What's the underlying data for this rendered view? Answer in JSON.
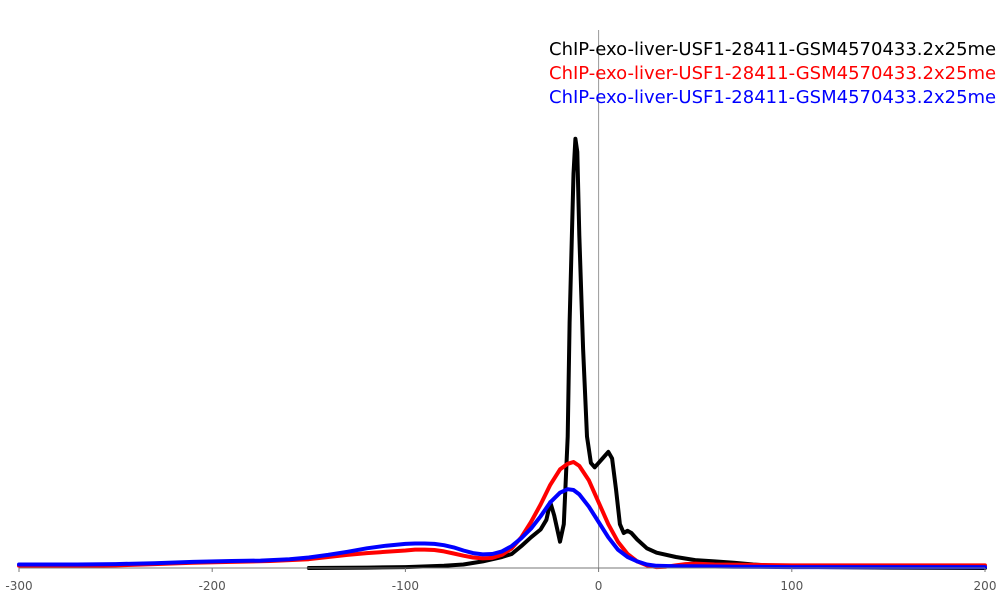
{
  "chart_data": {
    "type": "line",
    "title": "",
    "xlabel": "",
    "ylabel": "",
    "xlim": [
      -300,
      200
    ],
    "ylim": [
      0,
      1
    ],
    "grid": false,
    "legend_position": "top-right",
    "x_ticks": [
      -300,
      -200,
      -100,
      0,
      100,
      200
    ],
    "x_tick_labels": [
      "-300",
      "-200",
      "-100",
      "0",
      "100",
      "200"
    ],
    "series": [
      {
        "name": "ChIP-exo-liver-USF1-28411-GSM4570433.2x25me",
        "color": "#000000",
        "points": [
          [
            -150,
            0.0
          ],
          [
            -120,
            0.001
          ],
          [
            -100,
            0.002
          ],
          [
            -80,
            0.005
          ],
          [
            -70,
            0.008
          ],
          [
            -60,
            0.015
          ],
          [
            -50,
            0.025
          ],
          [
            -45,
            0.032
          ],
          [
            -40,
            0.05
          ],
          [
            -35,
            0.07
          ],
          [
            -30,
            0.088
          ],
          [
            -27,
            0.11
          ],
          [
            -25,
            0.15
          ],
          [
            -23,
            0.12
          ],
          [
            -20,
            0.06
          ],
          [
            -18,
            0.1
          ],
          [
            -16,
            0.3
          ],
          [
            -15,
            0.56
          ],
          [
            -13,
            0.9
          ],
          [
            -12,
            0.98
          ],
          [
            -11,
            0.95
          ],
          [
            -10,
            0.76
          ],
          [
            -8,
            0.5
          ],
          [
            -6,
            0.3
          ],
          [
            -4,
            0.24
          ],
          [
            -2,
            0.23
          ],
          [
            0,
            0.24
          ],
          [
            2,
            0.25
          ],
          [
            5,
            0.265
          ],
          [
            7,
            0.25
          ],
          [
            9,
            0.18
          ],
          [
            11,
            0.1
          ],
          [
            13,
            0.08
          ],
          [
            15,
            0.085
          ],
          [
            17,
            0.08
          ],
          [
            20,
            0.065
          ],
          [
            25,
            0.045
          ],
          [
            30,
            0.035
          ],
          [
            40,
            0.025
          ],
          [
            50,
            0.018
          ],
          [
            60,
            0.015
          ],
          [
            70,
            0.012
          ],
          [
            80,
            0.008
          ],
          [
            90,
            0.005
          ],
          [
            100,
            0.003
          ],
          [
            120,
            0.002
          ],
          [
            150,
            0.001
          ],
          [
            200,
            0.0
          ]
        ]
      },
      {
        "name": "ChIP-exo-liver-USF1-28411-GSM4570433.2x25me",
        "color": "#ff0000",
        "points": [
          [
            -300,
            0.005
          ],
          [
            -270,
            0.005
          ],
          [
            -250,
            0.006
          ],
          [
            -230,
            0.009
          ],
          [
            -210,
            0.012
          ],
          [
            -190,
            0.014
          ],
          [
            -170,
            0.016
          ],
          [
            -150,
            0.02
          ],
          [
            -140,
            0.025
          ],
          [
            -130,
            0.03
          ],
          [
            -120,
            0.034
          ],
          [
            -110,
            0.037
          ],
          [
            -100,
            0.04
          ],
          [
            -95,
            0.042
          ],
          [
            -90,
            0.042
          ],
          [
            -85,
            0.041
          ],
          [
            -80,
            0.038
          ],
          [
            -75,
            0.033
          ],
          [
            -70,
            0.028
          ],
          [
            -65,
            0.024
          ],
          [
            -60,
            0.022
          ],
          [
            -55,
            0.023
          ],
          [
            -50,
            0.03
          ],
          [
            -45,
            0.045
          ],
          [
            -40,
            0.07
          ],
          [
            -35,
            0.105
          ],
          [
            -30,
            0.145
          ],
          [
            -25,
            0.19
          ],
          [
            -20,
            0.225
          ],
          [
            -16,
            0.238
          ],
          [
            -13,
            0.242
          ],
          [
            -10,
            0.233
          ],
          [
            -5,
            0.2
          ],
          [
            0,
            0.15
          ],
          [
            5,
            0.1
          ],
          [
            10,
            0.06
          ],
          [
            15,
            0.032
          ],
          [
            20,
            0.015
          ],
          [
            25,
            0.006
          ],
          [
            30,
            0.002
          ],
          [
            35,
            0.003
          ],
          [
            40,
            0.006
          ],
          [
            45,
            0.009
          ],
          [
            50,
            0.01
          ],
          [
            60,
            0.008
          ],
          [
            80,
            0.007
          ],
          [
            100,
            0.006
          ],
          [
            150,
            0.006
          ],
          [
            200,
            0.006
          ]
        ]
      },
      {
        "name": "ChIP-exo-liver-USF1-28411-GSM4570433.2x25me",
        "color": "#0000ff",
        "points": [
          [
            -300,
            0.008
          ],
          [
            -270,
            0.008
          ],
          [
            -250,
            0.009
          ],
          [
            -230,
            0.011
          ],
          [
            -210,
            0.014
          ],
          [
            -190,
            0.016
          ],
          [
            -175,
            0.017
          ],
          [
            -160,
            0.02
          ],
          [
            -150,
            0.024
          ],
          [
            -140,
            0.03
          ],
          [
            -130,
            0.037
          ],
          [
            -120,
            0.045
          ],
          [
            -110,
            0.051
          ],
          [
            -100,
            0.055
          ],
          [
            -95,
            0.056
          ],
          [
            -90,
            0.056
          ],
          [
            -85,
            0.055
          ],
          [
            -80,
            0.052
          ],
          [
            -75,
            0.047
          ],
          [
            -70,
            0.04
          ],
          [
            -65,
            0.034
          ],
          [
            -60,
            0.031
          ],
          [
            -55,
            0.032
          ],
          [
            -50,
            0.038
          ],
          [
            -45,
            0.05
          ],
          [
            -40,
            0.068
          ],
          [
            -35,
            0.09
          ],
          [
            -30,
            0.118
          ],
          [
            -25,
            0.15
          ],
          [
            -20,
            0.172
          ],
          [
            -16,
            0.18
          ],
          [
            -13,
            0.178
          ],
          [
            -10,
            0.168
          ],
          [
            -5,
            0.14
          ],
          [
            0,
            0.105
          ],
          [
            5,
            0.07
          ],
          [
            10,
            0.042
          ],
          [
            15,
            0.025
          ],
          [
            20,
            0.015
          ],
          [
            25,
            0.008
          ],
          [
            30,
            0.005
          ],
          [
            40,
            0.004
          ],
          [
            50,
            0.004
          ],
          [
            70,
            0.003
          ],
          [
            100,
            0.002
          ],
          [
            150,
            0.002
          ],
          [
            200,
            0.002
          ]
        ]
      }
    ]
  }
}
